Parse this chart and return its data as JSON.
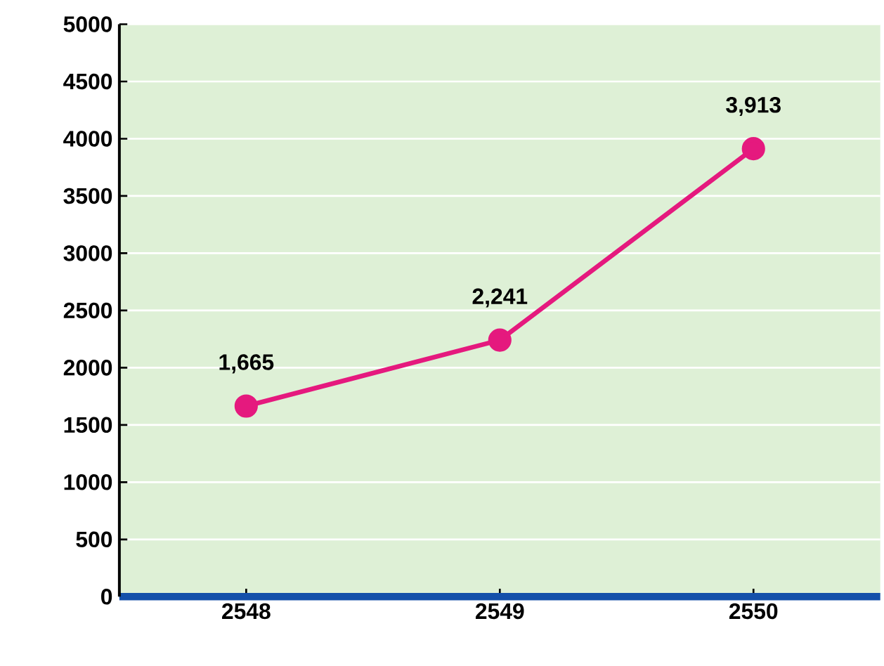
{
  "chart_data": {
    "type": "line",
    "categories": [
      "2548",
      "2549",
      "2550"
    ],
    "series": [
      {
        "color": "#e5197e",
        "values": [
          1665,
          2241,
          3913
        ],
        "value_labels": [
          "1,665",
          "2,241",
          "3,913"
        ]
      }
    ],
    "ylim": [
      0,
      5000
    ],
    "yticks": [
      0,
      500,
      1000,
      1500,
      2000,
      2500,
      3000,
      3500,
      4000,
      4500,
      5000
    ],
    "grid": "y",
    "marker": "circle",
    "line_style": "solid"
  }
}
